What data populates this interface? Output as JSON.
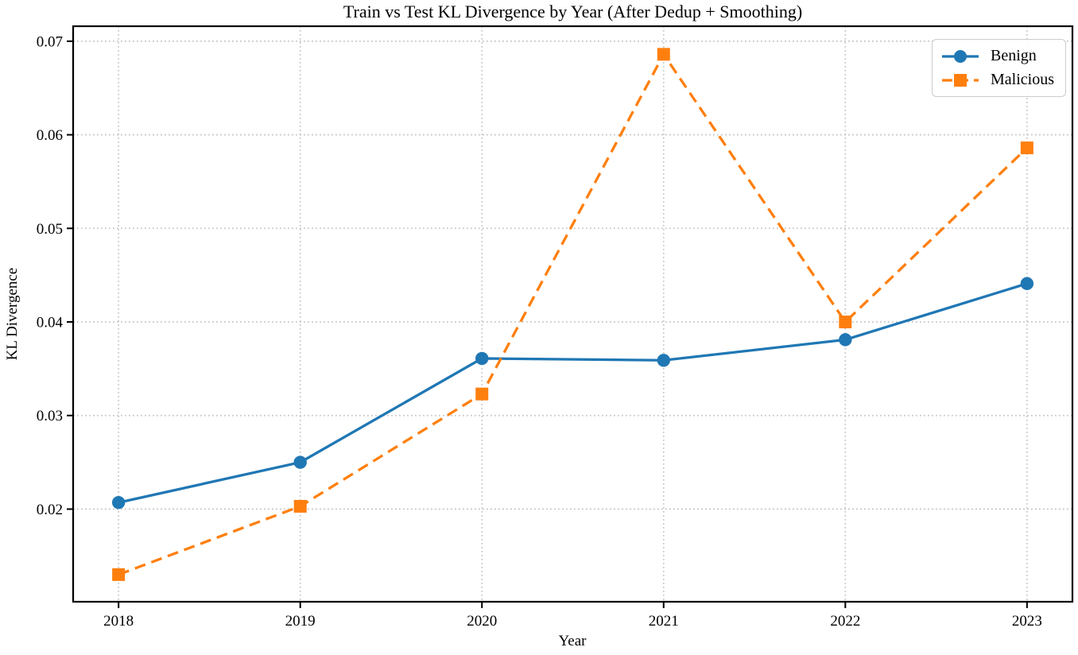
{
  "chart_data": {
    "type": "line",
    "title": "Train vs Test KL Divergence by Year (After Dedup + Smoothing)",
    "xlabel": "Year",
    "ylabel": "KL Divergence",
    "categories": [
      2018,
      2019,
      2020,
      2021,
      2022,
      2023
    ],
    "series": [
      {
        "name": "Benign",
        "color": "#1f77b4",
        "linestyle": "solid",
        "marker": "circle",
        "values": [
          0.0207,
          0.025,
          0.0361,
          0.0359,
          0.0381,
          0.0441
        ]
      },
      {
        "name": "Malicious",
        "color": "#ff7f0e",
        "linestyle": "dashed",
        "marker": "square",
        "values": [
          0.013,
          0.0203,
          0.0323,
          0.0686,
          0.04,
          0.0586
        ]
      }
    ],
    "xlim": [
      2017.75,
      2023.25
    ],
    "ylim": [
      0.0101,
      0.0716
    ],
    "xticks": [
      2018,
      2019,
      2020,
      2021,
      2022,
      2023
    ],
    "xtick_labels": [
      "2018",
      "2019",
      "2020",
      "2021",
      "2022",
      "2023"
    ],
    "yticks": [
      0.02,
      0.03,
      0.04,
      0.05,
      0.06,
      0.07
    ],
    "ytick_labels": [
      "0.02",
      "0.03",
      "0.04",
      "0.05",
      "0.06",
      "0.07"
    ],
    "grid": true,
    "legend_position": "upper right"
  },
  "style": {
    "grid_color": "#c8c8c8",
    "axis_color": "#000000",
    "background": "#ffffff"
  }
}
